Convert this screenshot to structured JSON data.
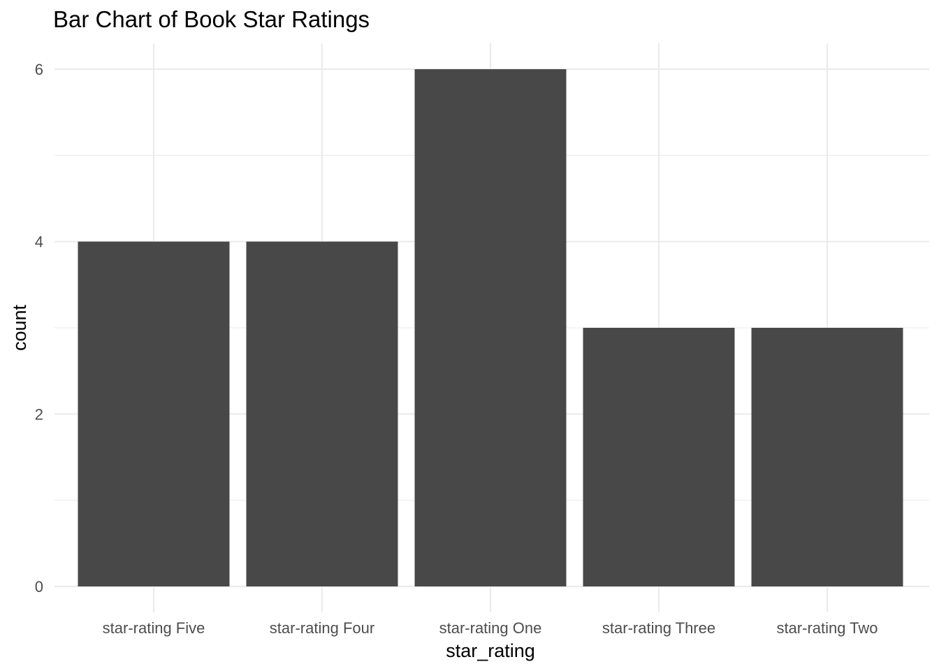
{
  "chart_data": {
    "type": "bar",
    "title": "Bar Chart of Book Star Ratings",
    "xlabel": "star_rating",
    "ylabel": "count",
    "categories": [
      "star-rating Five",
      "star-rating Four",
      "star-rating One",
      "star-rating Three",
      "star-rating Two"
    ],
    "values": [
      4,
      4,
      6,
      3,
      3
    ],
    "ylim": [
      0,
      6
    ],
    "yticks": [
      0,
      2,
      4,
      6
    ],
    "yticks_minor": [
      1,
      3,
      5
    ],
    "grid": true,
    "legend": "none",
    "bar_color": "#484848",
    "grid_color": "#ebebeb",
    "background": "#ffffff"
  }
}
